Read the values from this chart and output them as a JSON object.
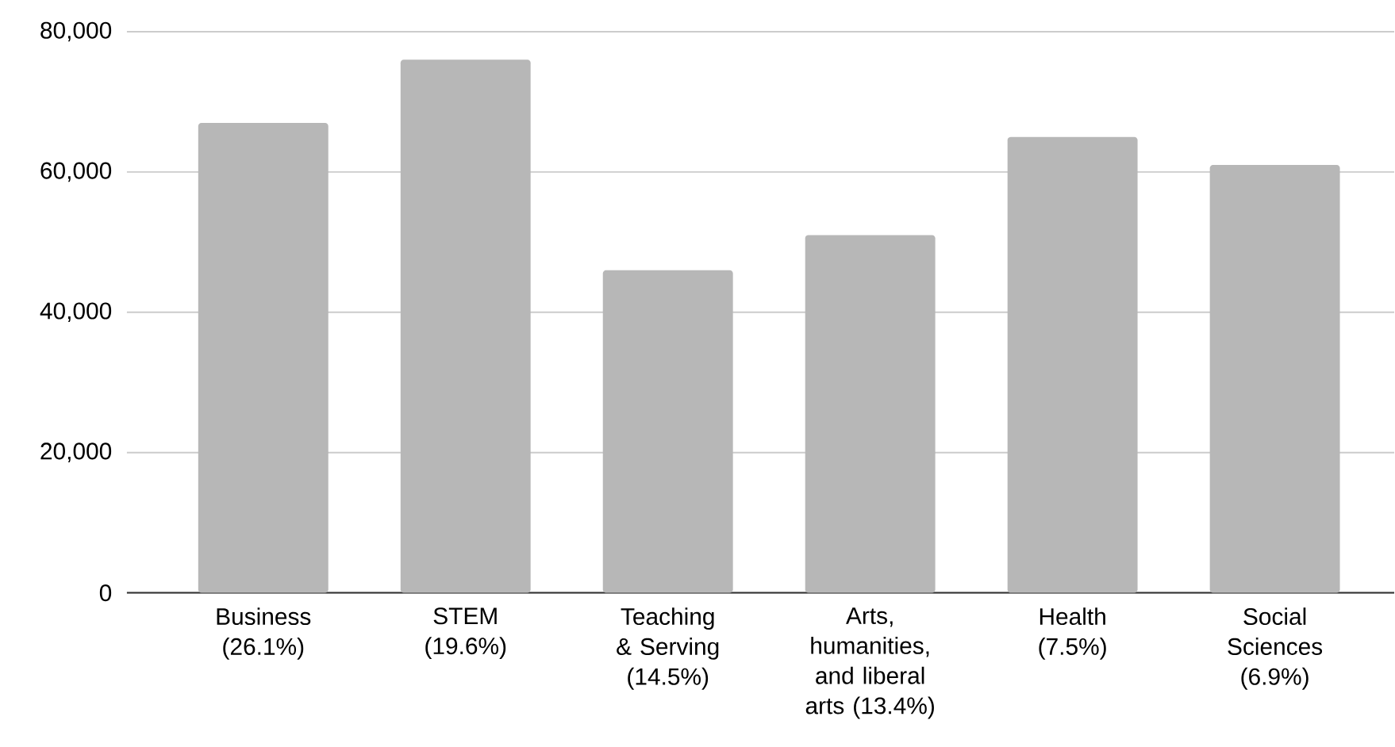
{
  "chart_data": {
    "type": "bar",
    "categories": [
      "Business (26.1%)",
      "STEM (19.6%)",
      "Teaching & Serving (14.5%)",
      "Arts, humanities, and liberal arts (13.4%)",
      "Health (7.5%)",
      "Social Sciences (6.9%)"
    ],
    "values": [
      67000,
      76000,
      46000,
      51000,
      65000,
      61000
    ],
    "color": "#b7b7b7",
    "ylim": [
      0,
      80000
    ],
    "yticks": [
      {
        "value": 0,
        "label": "0"
      },
      {
        "value": 20000,
        "label": "20,000"
      },
      {
        "value": 40000,
        "label": "40,000"
      },
      {
        "value": 60000,
        "label": "60,000"
      },
      {
        "value": 80000,
        "label": "80,000"
      }
    ],
    "grid": "y"
  }
}
